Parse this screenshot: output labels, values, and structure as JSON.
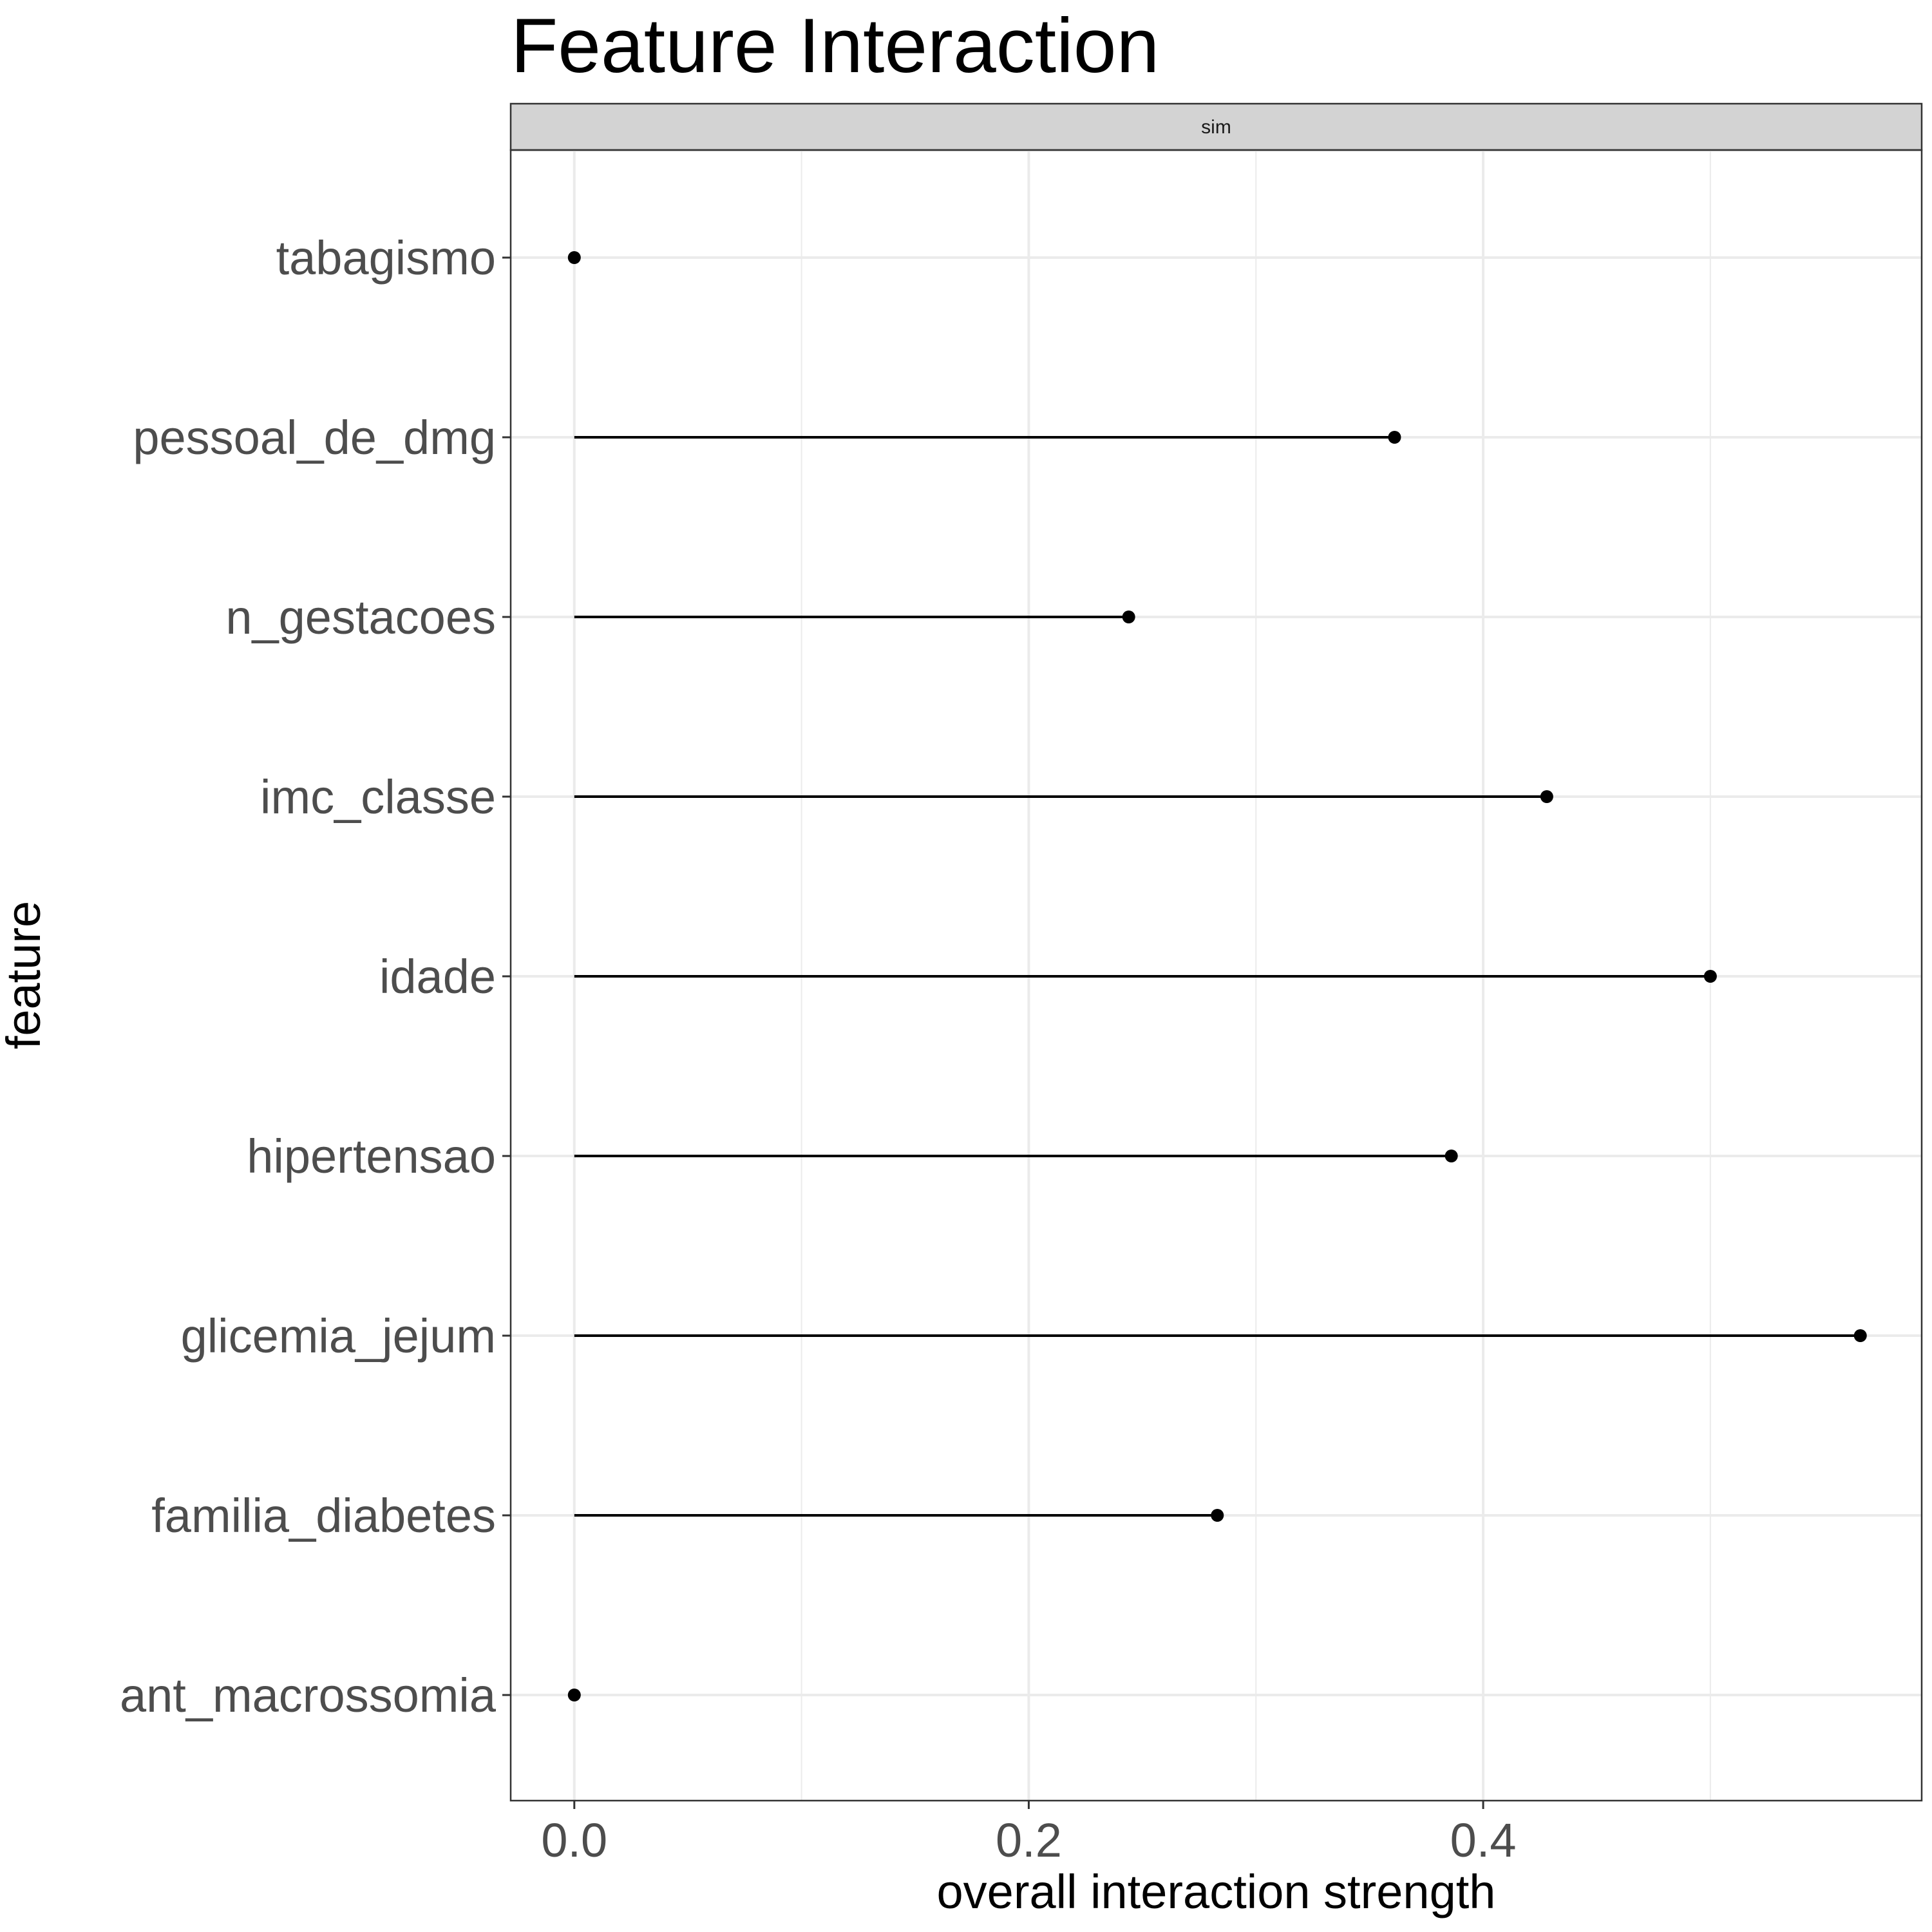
{
  "chart_data": {
    "type": "lollipop",
    "title": "Feature Interaction",
    "facet_label": "sim",
    "xlabel": "overall interaction strength",
    "ylabel": "feature",
    "xlim": [
      -0.028,
      0.593
    ],
    "xticks": [
      "0.0",
      "0.2",
      "0.4"
    ],
    "xtick_values": [
      0.0,
      0.2,
      0.4
    ],
    "grid": true,
    "categories": [
      "tabagismo",
      "pessoal_de_dmg",
      "n_gestacoes",
      "imc_classe",
      "idade",
      "hipertensao",
      "glicemia_jejum",
      "familia_diabetes",
      "ant_macrossomia"
    ],
    "values": [
      0.0,
      0.361,
      0.244,
      0.428,
      0.5,
      0.386,
      0.566,
      0.283,
      0.0
    ],
    "colors": {
      "strip_fill": "#d3d3d3",
      "grid": "#ebebeb",
      "mark": "#000000",
      "text": "#4d4d4d"
    }
  }
}
